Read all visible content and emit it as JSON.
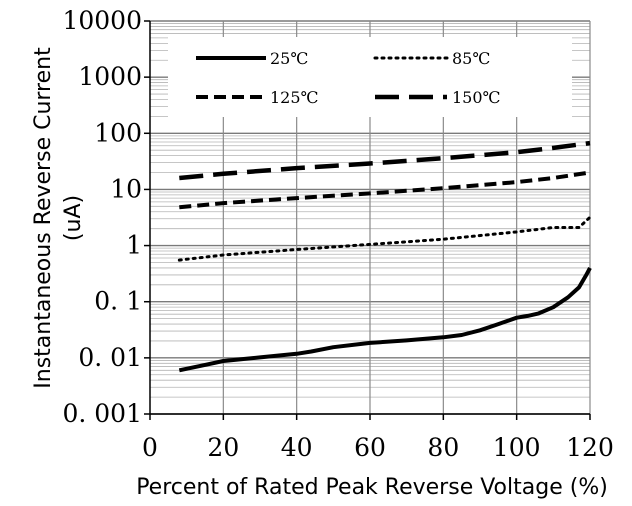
{
  "chart_data": {
    "type": "line",
    "title": "",
    "xlabel": "Percent of  Rated Peak Reverse Voltage (%)",
    "ylabel": "Instantaneous Reverse Current (uA)",
    "ylabel_lines": [
      "Instantaneous Reverse Current",
      "(uA)"
    ],
    "xlim": [
      0,
      120
    ],
    "ylim": [
      0.001,
      10000
    ],
    "yscale": "log",
    "x_ticks": [
      "0",
      "20",
      "40",
      "60",
      "80",
      "100",
      "120"
    ],
    "y_ticks": [
      "10000",
      "1000",
      "100",
      "10",
      "1",
      "0. 1",
      "0. 01",
      "0. 001"
    ],
    "grid": true,
    "legend_position": "top",
    "series": [
      {
        "name": "25℃",
        "style": "solid",
        "color": "#000000",
        "x": [
          8,
          15,
          20,
          30,
          40,
          44,
          50,
          60,
          70,
          80,
          85,
          90,
          95,
          100,
          103,
          106,
          110,
          114,
          117,
          119,
          120
        ],
        "y": [
          0.006,
          0.0075,
          0.0088,
          0.0102,
          0.0118,
          0.013,
          0.0155,
          0.0185,
          0.0205,
          0.0232,
          0.0255,
          0.031,
          0.04,
          0.052,
          0.056,
          0.062,
          0.08,
          0.12,
          0.18,
          0.3,
          0.4
        ]
      },
      {
        "name": "85℃",
        "style": "dotted",
        "color": "#000000",
        "x": [
          8,
          20,
          40,
          60,
          80,
          100,
          110,
          117,
          120
        ],
        "y": [
          0.55,
          0.68,
          0.85,
          1.05,
          1.3,
          1.75,
          2.1,
          2.1,
          3.2
        ]
      },
      {
        "name": "125℃",
        "style": "dashed",
        "color": "#000000",
        "x": [
          8,
          20,
          40,
          60,
          80,
          100,
          110,
          120
        ],
        "y": [
          4.8,
          5.7,
          7.0,
          8.5,
          10.5,
          13.5,
          16,
          20
        ]
      },
      {
        "name": "150℃",
        "style": "long-dash",
        "color": "#000000",
        "x": [
          8,
          20,
          40,
          60,
          80,
          100,
          110,
          120
        ],
        "y": [
          16,
          19,
          24,
          29,
          36,
          46,
          55,
          67
        ]
      }
    ]
  }
}
